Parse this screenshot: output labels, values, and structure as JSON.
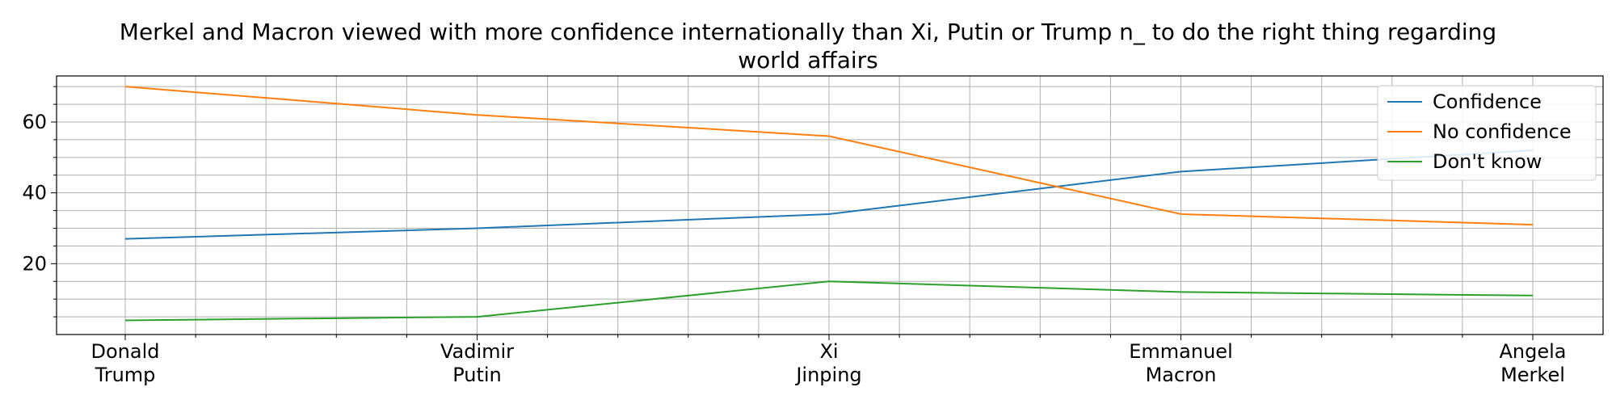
{
  "chart_data": {
    "type": "line",
    "title_lines": [
      "Merkel and Macron viewed with more confidence internationally than Xi, Putin or Trump n_ to do the right thing regarding",
      "world affairs"
    ],
    "xlabel": "",
    "ylabel": "",
    "categories": [
      [
        "Donald",
        "Trump"
      ],
      [
        "Vadimir",
        "Putin"
      ],
      [
        "Xi",
        "Jinping"
      ],
      [
        "Emmanuel",
        "Macron"
      ],
      [
        "Angela",
        "Merkel"
      ]
    ],
    "yticks": [
      "20",
      "40",
      "60"
    ],
    "ylim": [
      0,
      73
    ],
    "grid": true,
    "legend_position": "top-right",
    "series": [
      {
        "name": "Confidence",
        "color": "#1f77b4",
        "values": [
          27,
          30,
          34,
          46,
          52
        ]
      },
      {
        "name": "No confidence",
        "color": "#ff7f0e",
        "values": [
          70,
          62,
          56,
          34,
          31
        ]
      },
      {
        "name": "Don't know",
        "color": "#2ca02c",
        "values": [
          4,
          5,
          15,
          12,
          11
        ]
      }
    ]
  }
}
